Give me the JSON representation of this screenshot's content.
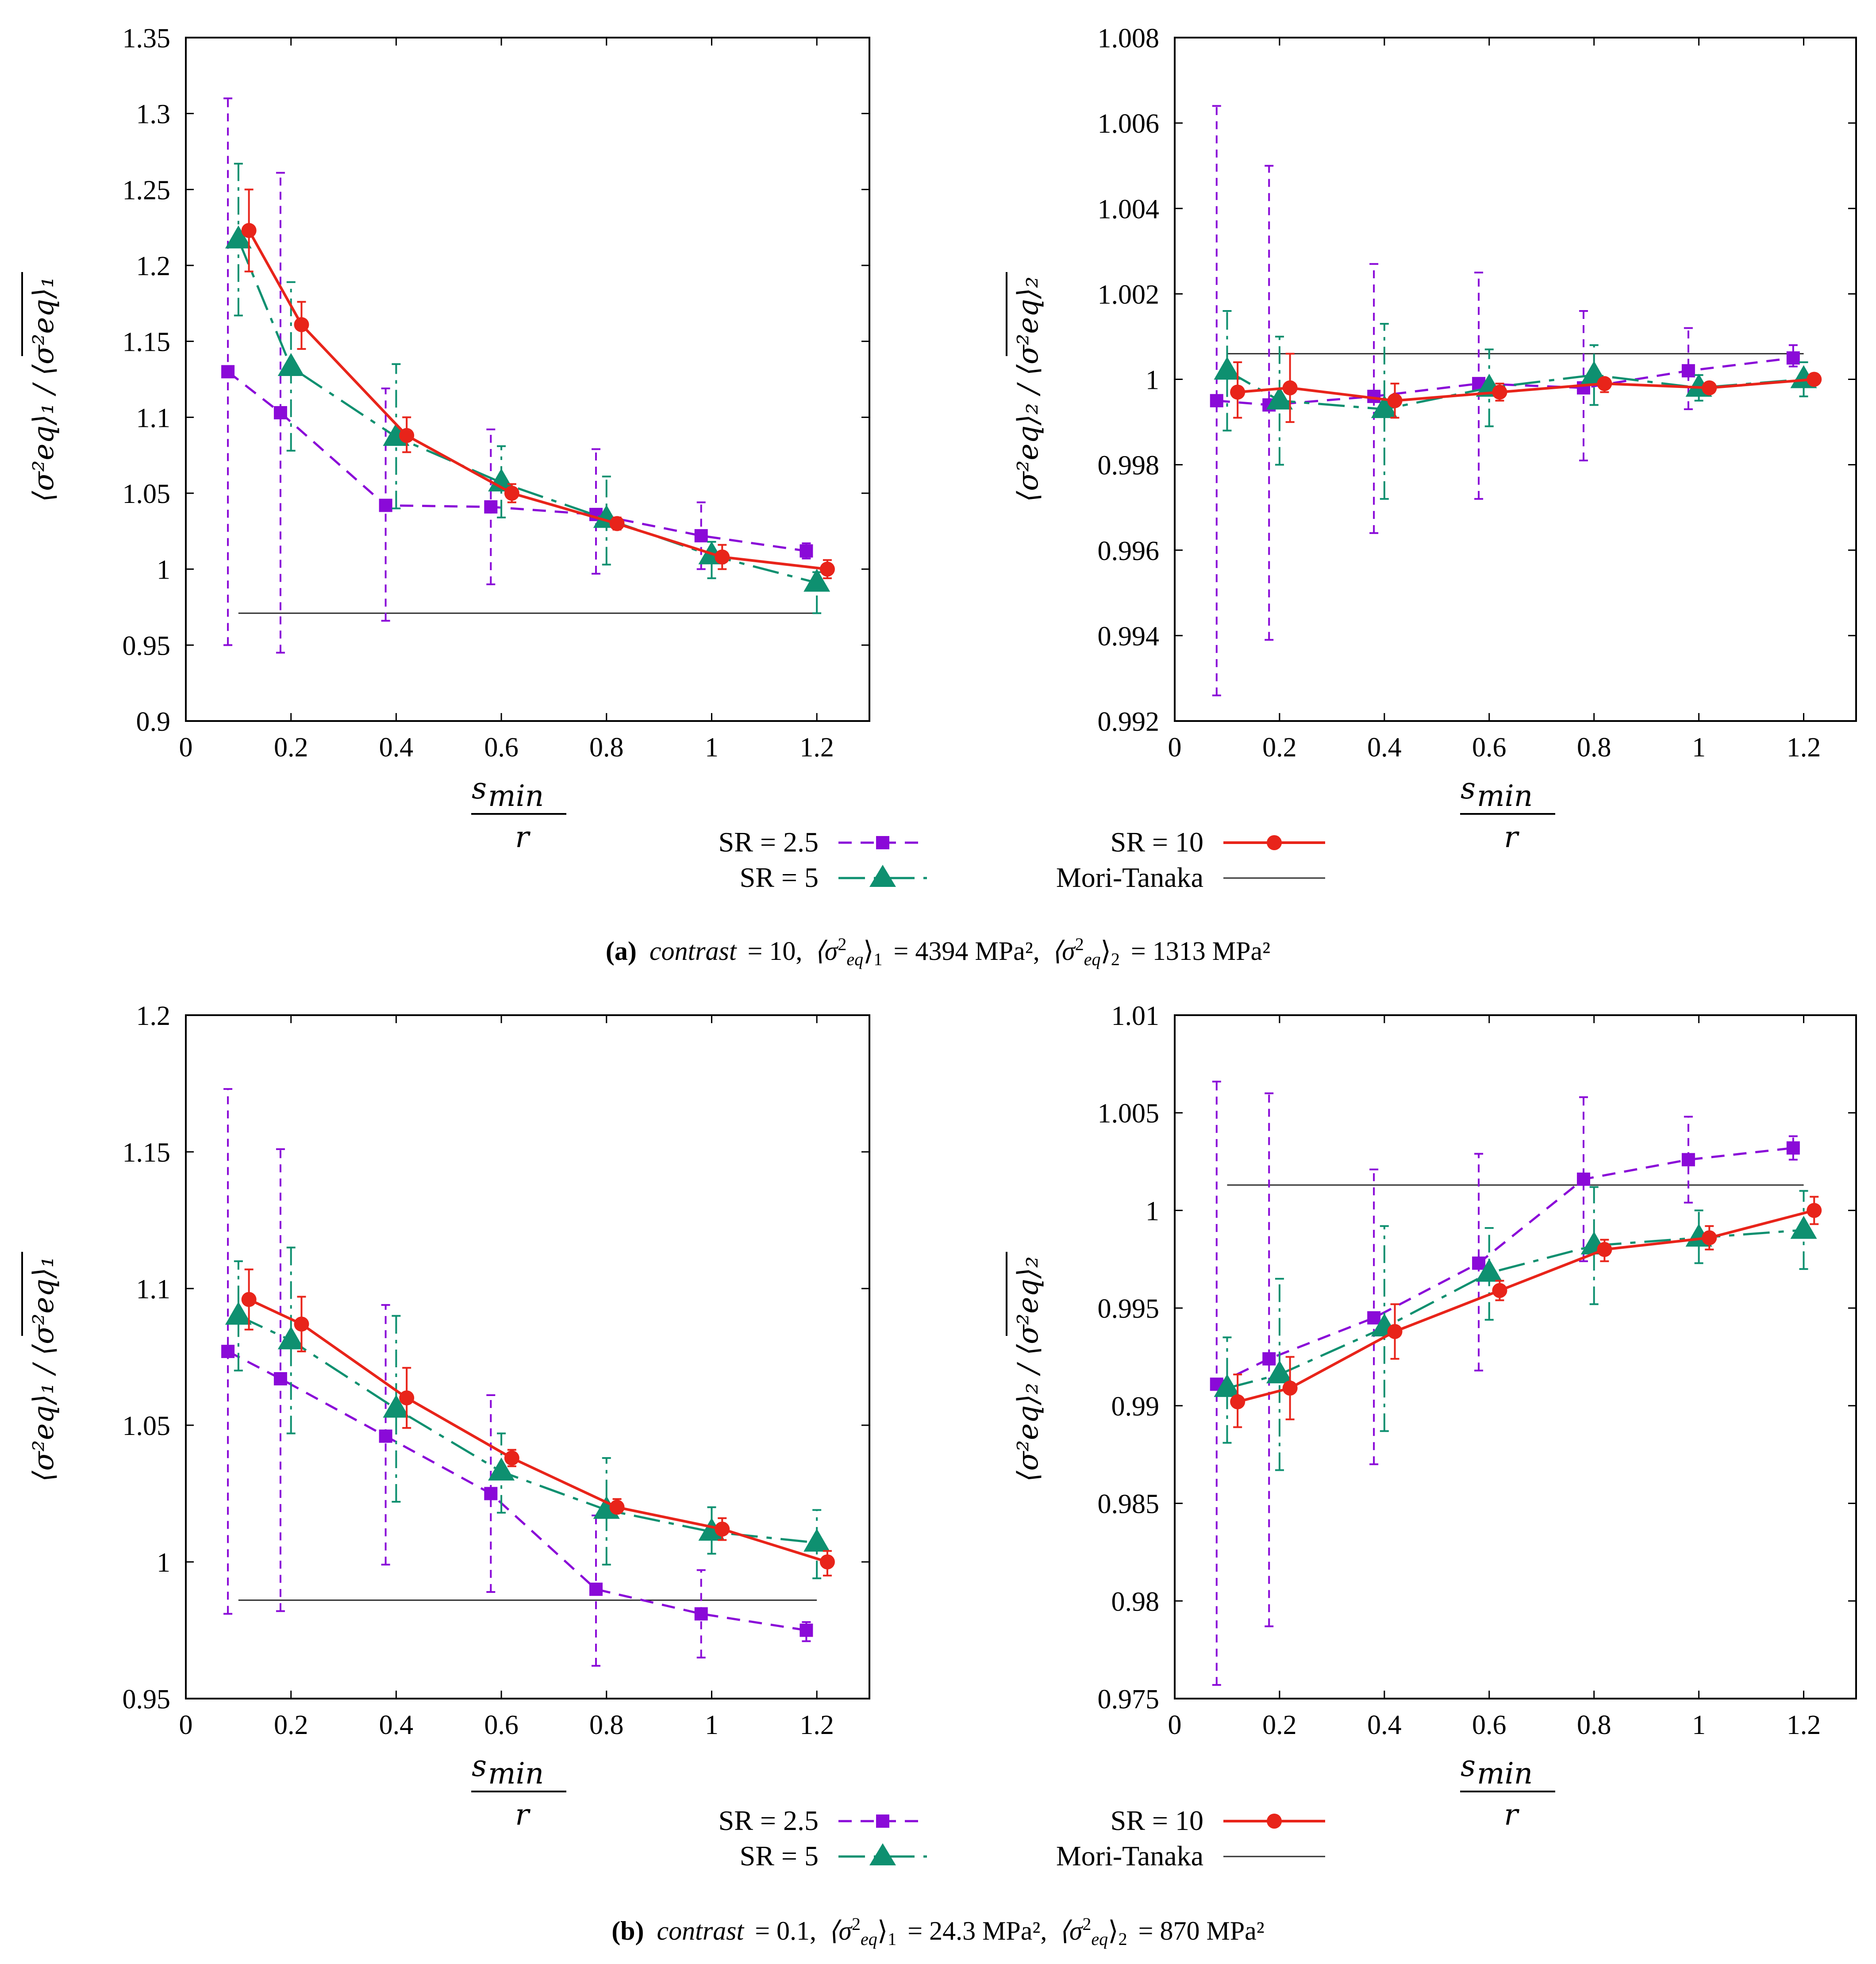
{
  "legend": {
    "sr25": "SR = 2.5",
    "sr5": "SR = 5",
    "sr10": "SR = 10",
    "mt": "Mori-Tanaka"
  },
  "colors": {
    "sr25": "#8a0ad8",
    "sr5": "#0e9070",
    "sr10": "#e8241a",
    "mt": "#303030"
  },
  "x_label": {
    "num": "s",
    "num_sub": "min",
    "den": "r"
  },
  "captions": {
    "a": {
      "tag": "(a)",
      "contrast_word": "contrast",
      "contrast_value": "= 10,",
      "mean1": "= 4394 MPa²,",
      "mean2": "= 1313 MPa²"
    },
    "b": {
      "tag": "(b)",
      "contrast_word": "contrast",
      "contrast_value": "= 0.1,",
      "mean1": "= 24.3 MPa²,",
      "mean2": "= 870 MPa²"
    }
  },
  "y_labels": {
    "left": "⟨σ²eq⟩₁ / ⟨σ²eq⟩₁",
    "right": "⟨σ²eq⟩₂ / ⟨σ²eq⟩₂"
  },
  "chart_data": [
    {
      "id": "a-left",
      "type": "line",
      "xlim": [
        0,
        1.3
      ],
      "ylim": [
        0.9,
        1.35
      ],
      "xticks": [
        "0",
        "0.2",
        "0.4",
        "0.6",
        "0.8",
        "1",
        "1.2"
      ],
      "yticks": [
        "0.9",
        "0.95",
        "1",
        "1.05",
        "1.1",
        "1.15",
        "1.2",
        "1.25",
        "1.3",
        "1.35"
      ],
      "mori_tanaka": {
        "x": [
          0.1,
          1.2
        ],
        "y": 0.971
      },
      "series": [
        {
          "name": "SR = 2.5",
          "x": [
            0.08,
            0.18,
            0.38,
            0.58,
            0.78,
            0.98,
            1.18
          ],
          "y": [
            1.13,
            1.103,
            1.042,
            1.041,
            1.036,
            1.022,
            1.012
          ],
          "lo": [
            0.95,
            0.945,
            0.966,
            0.99,
            0.997,
            1.0,
            1.007
          ],
          "hi": [
            1.31,
            1.261,
            1.119,
            1.092,
            1.079,
            1.044,
            1.017
          ]
        },
        {
          "name": "SR = 5",
          "x": [
            0.1,
            0.2,
            0.4,
            0.6,
            0.8,
            1.0,
            1.2
          ],
          "y": [
            1.217,
            1.133,
            1.087,
            1.057,
            1.033,
            1.009,
            0.991
          ],
          "lo": [
            1.167,
            1.078,
            1.04,
            1.034,
            1.003,
            0.994,
            0.971
          ],
          "hi": [
            1.267,
            1.189,
            1.135,
            1.081,
            1.061,
            1.018,
            0.998
          ]
        },
        {
          "name": "SR = 10",
          "x": [
            0.12,
            0.22,
            0.42,
            0.62,
            0.82,
            1.02,
            1.22
          ],
          "y": [
            1.223,
            1.161,
            1.088,
            1.05,
            1.03,
            1.008,
            1.0
          ],
          "lo": [
            1.196,
            1.145,
            1.077,
            1.044,
            1.026,
            1.0,
            0.994
          ],
          "hi": [
            1.25,
            1.176,
            1.1,
            1.056,
            1.034,
            1.016,
            1.006
          ]
        }
      ]
    },
    {
      "id": "a-right",
      "type": "line",
      "xlim": [
        0,
        1.3
      ],
      "ylim": [
        0.992,
        1.008
      ],
      "xticks": [
        "0",
        "0.2",
        "0.4",
        "0.6",
        "0.8",
        "1",
        "1.2"
      ],
      "yticks": [
        "0.992",
        "0.994",
        "0.996",
        "0.998",
        "1",
        "1.002",
        "1.004",
        "1.006",
        "1.008"
      ],
      "mori_tanaka": {
        "x": [
          0.1,
          1.2
        ],
        "y": 1.0006
      },
      "series": [
        {
          "name": "SR = 2.5",
          "x": [
            0.08,
            0.18,
            0.38,
            0.58,
            0.78,
            0.98,
            1.18
          ],
          "y": [
            0.9995,
            0.9994,
            0.9996,
            0.9999,
            0.9998,
            1.0002,
            1.0005
          ],
          "lo": [
            0.9926,
            0.9939,
            0.9964,
            0.9972,
            0.9981,
            0.9993,
            1.0003
          ],
          "hi": [
            1.0064,
            1.005,
            1.0027,
            1.0025,
            1.0016,
            1.0012,
            1.0008
          ]
        },
        {
          "name": "SR = 5",
          "x": [
            0.1,
            0.2,
            0.4,
            0.6,
            0.8,
            1.0,
            1.2
          ],
          "y": [
            1.0002,
            0.9995,
            0.9993,
            0.9998,
            1.0001,
            0.9998,
            1.0
          ],
          "lo": [
            0.9988,
            0.998,
            0.9972,
            0.9989,
            0.9994,
            0.9995,
            0.9996
          ],
          "hi": [
            1.0016,
            1.001,
            1.0013,
            1.0007,
            1.0008,
            1.0001,
            1.0004
          ]
        },
        {
          "name": "SR = 10",
          "x": [
            0.12,
            0.22,
            0.42,
            0.62,
            0.82,
            1.02,
            1.22
          ],
          "y": [
            0.9997,
            0.9998,
            0.9995,
            0.9997,
            0.9999,
            0.9998,
            1.0
          ],
          "lo": [
            0.9991,
            0.999,
            0.9991,
            0.9995,
            0.9997,
            0.9997,
            0.9999
          ],
          "hi": [
            1.0004,
            1.0006,
            0.9999,
            0.9999,
            1.0,
            0.9999,
            1.0001
          ]
        }
      ]
    },
    {
      "id": "b-left",
      "type": "line",
      "xlim": [
        0,
        1.3
      ],
      "ylim": [
        0.95,
        1.2
      ],
      "xticks": [
        "0",
        "0.2",
        "0.4",
        "0.6",
        "0.8",
        "1",
        "1.2"
      ],
      "yticks": [
        "0.95",
        "1",
        "1.05",
        "1.1",
        "1.15",
        "1.2"
      ],
      "mori_tanaka": {
        "x": [
          0.1,
          1.2
        ],
        "y": 0.986
      },
      "series": [
        {
          "name": "SR = 2.5",
          "x": [
            0.08,
            0.18,
            0.38,
            0.58,
            0.78,
            0.98,
            1.18
          ],
          "y": [
            1.077,
            1.067,
            1.046,
            1.025,
            0.99,
            0.981,
            0.975
          ],
          "lo": [
            0.981,
            0.982,
            0.999,
            0.989,
            0.962,
            0.965,
            0.971
          ],
          "hi": [
            1.173,
            1.151,
            1.094,
            1.061,
            1.017,
            0.997,
            0.978
          ]
        },
        {
          "name": "SR = 5",
          "x": [
            0.1,
            0.2,
            0.4,
            0.6,
            0.8,
            1.0,
            1.2
          ],
          "y": [
            1.09,
            1.081,
            1.056,
            1.033,
            1.019,
            1.011,
            1.007
          ],
          "lo": [
            1.07,
            1.047,
            1.022,
            1.018,
            0.999,
            1.003,
            0.994
          ],
          "hi": [
            1.11,
            1.115,
            1.09,
            1.047,
            1.038,
            1.02,
            1.019
          ]
        },
        {
          "name": "SR = 10",
          "x": [
            0.12,
            0.22,
            0.42,
            0.62,
            0.82,
            1.02,
            1.22
          ],
          "y": [
            1.096,
            1.087,
            1.06,
            1.038,
            1.02,
            1.012,
            1.0
          ],
          "lo": [
            1.085,
            1.077,
            1.049,
            1.035,
            1.018,
            1.008,
            0.995
          ],
          "hi": [
            1.107,
            1.097,
            1.071,
            1.041,
            1.023,
            1.016,
            1.004
          ]
        }
      ]
    },
    {
      "id": "b-right",
      "type": "line",
      "xlim": [
        0,
        1.3
      ],
      "ylim": [
        0.975,
        1.01
      ],
      "xticks": [
        "0",
        "0.2",
        "0.4",
        "0.6",
        "0.8",
        "1",
        "1.2"
      ],
      "yticks": [
        "0.975",
        "0.98",
        "0.985",
        "0.99",
        "0.995",
        "1",
        "1.005",
        "1.01"
      ],
      "mori_tanaka": {
        "x": [
          0.1,
          1.2
        ],
        "y": 1.0013
      },
      "series": [
        {
          "name": "SR = 2.5",
          "x": [
            0.08,
            0.18,
            0.38,
            0.58,
            0.78,
            0.98,
            1.18
          ],
          "y": [
            0.9911,
            0.9924,
            0.9945,
            0.9973,
            1.0016,
            1.0026,
            1.0032
          ],
          "lo": [
            0.9757,
            0.9787,
            0.987,
            0.9918,
            0.9974,
            1.0004,
            1.0026
          ],
          "hi": [
            1.0066,
            1.006,
            1.0021,
            1.0029,
            1.0058,
            1.0048,
            1.0038
          ]
        },
        {
          "name": "SR = 5",
          "x": [
            0.1,
            0.2,
            0.4,
            0.6,
            0.8,
            1.0,
            1.2
          ],
          "y": [
            0.9909,
            0.9916,
            0.994,
            0.9968,
            0.9982,
            0.9986,
            0.999
          ],
          "lo": [
            0.9881,
            0.9867,
            0.9887,
            0.9944,
            0.9952,
            0.9973,
            0.997
          ],
          "hi": [
            0.9935,
            0.9965,
            0.9992,
            0.9991,
            1.0012,
            1.0,
            1.001
          ]
        },
        {
          "name": "SR = 10",
          "x": [
            0.12,
            0.22,
            0.42,
            0.62,
            0.82,
            1.02,
            1.22
          ],
          "y": [
            0.9902,
            0.9909,
            0.9938,
            0.9959,
            0.998,
            0.9986,
            1.0
          ],
          "lo": [
            0.9889,
            0.9893,
            0.9924,
            0.9954,
            0.9974,
            0.998,
            0.9993
          ],
          "hi": [
            0.9916,
            0.9925,
            0.9952,
            0.9964,
            0.9985,
            0.9992,
            1.0007
          ]
        }
      ]
    }
  ]
}
